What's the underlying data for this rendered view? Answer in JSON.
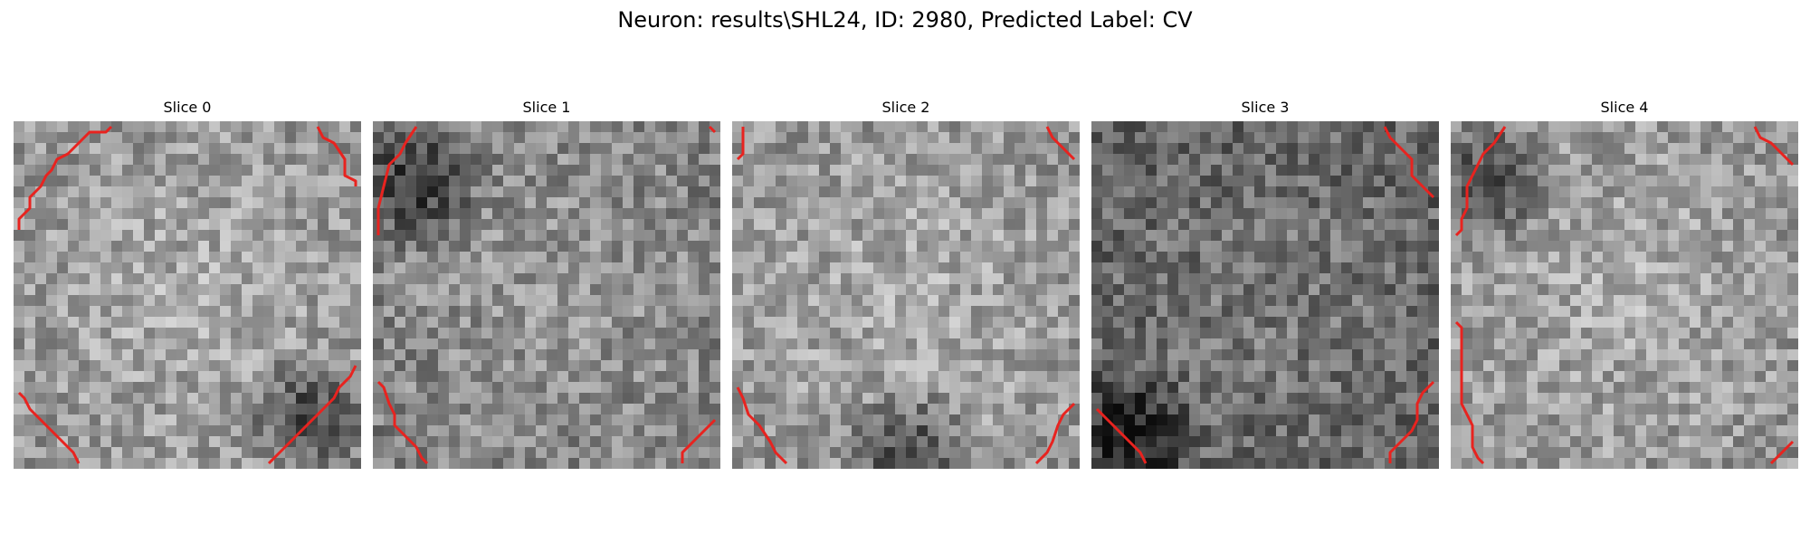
{
  "title": "Neuron: results\\SHL24, ID: 2980, Predicted Label: CV",
  "contour_color": "#e8231f",
  "panels": [
    {
      "label": "Slice 0",
      "brightness": "bright",
      "description_visual": "noisy grayscale pixel patch, brighter center, dark bottom-right region",
      "dark_regions": [
        "bottom-right"
      ]
    },
    {
      "label": "Slice 1",
      "brightness": "medium",
      "description_visual": "noisy grayscale pixel patch, dark blob in upper-left",
      "dark_regions": [
        "upper-left"
      ]
    },
    {
      "label": "Slice 2",
      "brightness": "bright",
      "description_visual": "noisy grayscale pixel patch, bright middle, dark bottom edge",
      "dark_regions": [
        "bottom"
      ]
    },
    {
      "label": "Slice 3",
      "brightness": "dark",
      "description_visual": "noisy grayscale pixel patch, overall darker, dark bottom-left",
      "dark_regions": [
        "bottom-left"
      ]
    },
    {
      "label": "Slice 4",
      "brightness": "bright",
      "description_visual": "noisy grayscale pixel patch, bright, dark upper-left corner",
      "dark_regions": [
        "upper-left"
      ]
    }
  ]
}
